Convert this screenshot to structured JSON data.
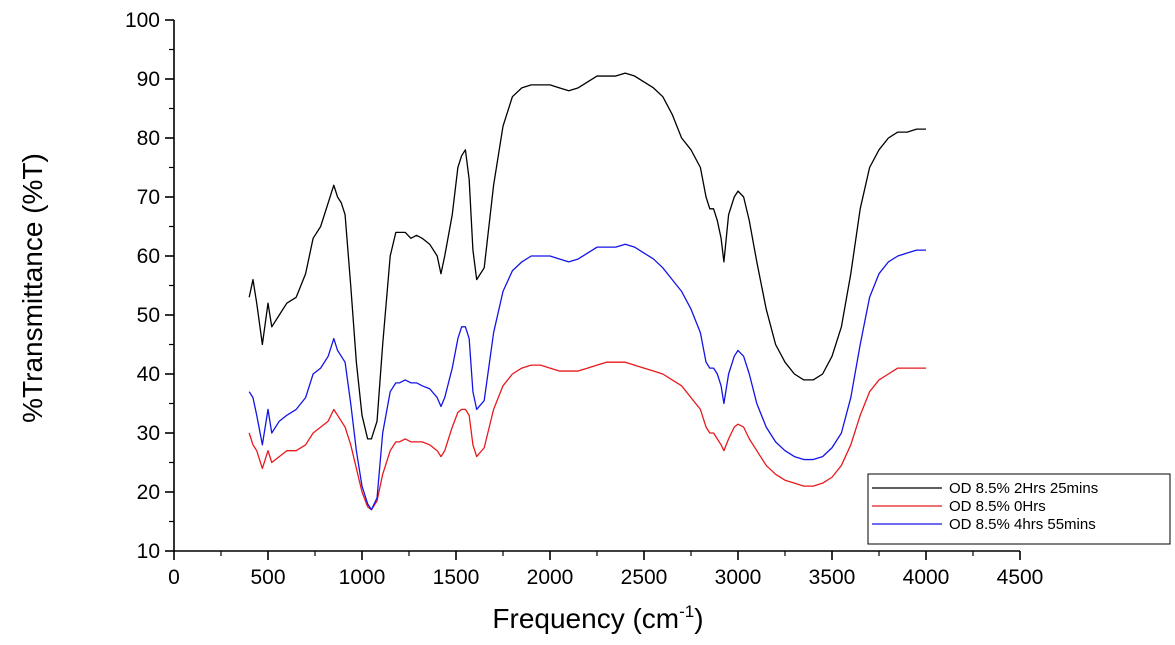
{
  "chart_data": {
    "type": "line",
    "title": "",
    "xlabel": "Frequency (cm",
    "xlabel_sup": "-1",
    "xlabel_end": ")",
    "ylabel": "%Transmittance (%T)",
    "xlim": [
      0,
      4500
    ],
    "ylim": [
      10,
      100
    ],
    "xticks": [
      0,
      500,
      1000,
      1500,
      2000,
      2500,
      3000,
      3500,
      4000,
      4500
    ],
    "yticks": [
      10,
      20,
      30,
      40,
      50,
      60,
      70,
      80,
      90,
      100
    ],
    "grid": false,
    "legend_position": "bottom-right",
    "series": [
      {
        "name": "OD 8.5% 2Hrs 25mins",
        "color": "#000000",
        "x": [
          400,
          420,
          440,
          470,
          500,
          520,
          560,
          600,
          650,
          700,
          740,
          780,
          820,
          850,
          870,
          890,
          910,
          940,
          970,
          1000,
          1030,
          1050,
          1080,
          1110,
          1150,
          1180,
          1200,
          1230,
          1260,
          1290,
          1320,
          1360,
          1400,
          1420,
          1440,
          1480,
          1510,
          1530,
          1550,
          1570,
          1590,
          1610,
          1650,
          1700,
          1750,
          1800,
          1850,
          1900,
          1950,
          2000,
          2050,
          2100,
          2150,
          2200,
          2250,
          2300,
          2350,
          2400,
          2450,
          2500,
          2550,
          2600,
          2650,
          2700,
          2750,
          2800,
          2830,
          2850,
          2870,
          2890,
          2910,
          2925,
          2950,
          2980,
          3000,
          3030,
          3060,
          3100,
          3150,
          3200,
          3250,
          3300,
          3350,
          3400,
          3450,
          3500,
          3550,
          3600,
          3650,
          3700,
          3750,
          3800,
          3850,
          3900,
          3950,
          4000
        ],
        "y": [
          53,
          56,
          52,
          45,
          52,
          48,
          50,
          52,
          53,
          57,
          63,
          65,
          69,
          72,
          70,
          69,
          67,
          55,
          42,
          33,
          29,
          29,
          32,
          45,
          60,
          64,
          64,
          64,
          63,
          63.5,
          63,
          62,
          60,
          57,
          60,
          67,
          75,
          77,
          78,
          73,
          61,
          56,
          58,
          72,
          82,
          87,
          88.5,
          89,
          89,
          89,
          88.5,
          88,
          88.5,
          89.5,
          90.5,
          90.5,
          90.5,
          91,
          90.5,
          89.5,
          88.5,
          87,
          84,
          80,
          78,
          75,
          70,
          68,
          68,
          66,
          63,
          59,
          67,
          70,
          71,
          70,
          66,
          59,
          51,
          45,
          42,
          40,
          39,
          39,
          40,
          43,
          48,
          57,
          68,
          75,
          78,
          80,
          81,
          81,
          81.5,
          81.5
        ]
      },
      {
        "name": "OD 8.5% 0Hrs",
        "color": "#e8191c",
        "x": [
          400,
          420,
          440,
          470,
          500,
          520,
          560,
          600,
          650,
          700,
          740,
          780,
          820,
          850,
          870,
          890,
          910,
          940,
          970,
          1000,
          1030,
          1050,
          1080,
          1110,
          1150,
          1180,
          1200,
          1230,
          1260,
          1290,
          1320,
          1360,
          1400,
          1420,
          1440,
          1480,
          1510,
          1530,
          1550,
          1570,
          1590,
          1610,
          1650,
          1700,
          1750,
          1800,
          1850,
          1900,
          1950,
          2000,
          2050,
          2100,
          2150,
          2200,
          2250,
          2300,
          2350,
          2400,
          2450,
          2500,
          2550,
          2600,
          2650,
          2700,
          2750,
          2800,
          2830,
          2850,
          2870,
          2890,
          2910,
          2925,
          2950,
          2980,
          3000,
          3030,
          3060,
          3100,
          3150,
          3200,
          3250,
          3300,
          3350,
          3400,
          3450,
          3500,
          3550,
          3600,
          3650,
          3700,
          3750,
          3800,
          3850,
          3900,
          3950,
          4000
        ],
        "y": [
          30,
          28,
          27,
          24,
          27,
          25,
          26,
          27,
          27,
          28,
          30,
          31,
          32,
          34,
          33,
          32,
          31,
          28,
          24,
          20,
          17.5,
          17,
          18.5,
          23,
          27,
          28.5,
          28.5,
          29,
          28.5,
          28.5,
          28.5,
          28,
          27,
          26,
          27,
          31,
          33.5,
          34,
          34,
          33,
          28,
          26,
          27.5,
          34,
          38,
          40,
          41,
          41.5,
          41.5,
          41,
          40.5,
          40.5,
          40.5,
          41,
          41.5,
          42,
          42,
          42,
          41.5,
          41,
          40.5,
          40,
          39,
          38,
          36,
          34,
          31,
          30,
          30,
          29,
          28,
          27,
          29,
          31,
          31.5,
          31,
          29,
          27,
          24.5,
          23,
          22,
          21.5,
          21,
          21,
          21.5,
          22.5,
          24.5,
          28,
          33,
          37,
          39,
          40,
          41,
          41,
          41,
          41
        ]
      },
      {
        "name": "OD 8.5% 4hrs 55mins",
        "color": "#1414e6",
        "x": [
          400,
          420,
          440,
          470,
          500,
          520,
          560,
          600,
          650,
          700,
          740,
          780,
          820,
          850,
          870,
          890,
          910,
          940,
          970,
          1000,
          1030,
          1050,
          1080,
          1110,
          1150,
          1180,
          1200,
          1230,
          1260,
          1290,
          1320,
          1360,
          1400,
          1420,
          1440,
          1480,
          1510,
          1530,
          1550,
          1570,
          1590,
          1610,
          1650,
          1700,
          1750,
          1800,
          1850,
          1900,
          1950,
          2000,
          2050,
          2100,
          2150,
          2200,
          2250,
          2300,
          2350,
          2400,
          2450,
          2500,
          2550,
          2600,
          2650,
          2700,
          2750,
          2800,
          2830,
          2850,
          2870,
          2890,
          2910,
          2925,
          2950,
          2980,
          3000,
          3030,
          3060,
          3100,
          3150,
          3200,
          3250,
          3300,
          3350,
          3400,
          3450,
          3500,
          3550,
          3600,
          3650,
          3700,
          3750,
          3800,
          3850,
          3900,
          3950,
          4000
        ],
        "y": [
          37,
          36,
          33,
          28,
          34,
          30,
          32,
          33,
          34,
          36,
          40,
          41,
          43,
          46,
          44,
          43,
          42,
          35,
          27,
          21,
          18,
          17,
          19,
          30,
          37,
          38.5,
          38.5,
          39,
          38.5,
          38.5,
          38,
          37.5,
          36,
          34.5,
          36,
          41,
          46,
          48,
          48,
          46,
          37,
          34,
          35.5,
          47,
          54,
          57.5,
          59,
          60,
          60,
          60,
          59.5,
          59,
          59.5,
          60.5,
          61.5,
          61.5,
          61.5,
          62,
          61.5,
          60.5,
          59.5,
          58,
          56,
          54,
          51,
          47,
          42,
          41,
          41,
          40,
          38,
          35,
          40,
          43,
          44,
          43,
          40,
          35,
          31,
          28.5,
          27,
          26,
          25.5,
          25.5,
          26,
          27.5,
          30,
          36,
          45,
          53,
          57,
          59,
          60,
          60.5,
          61,
          61
        ]
      }
    ]
  }
}
